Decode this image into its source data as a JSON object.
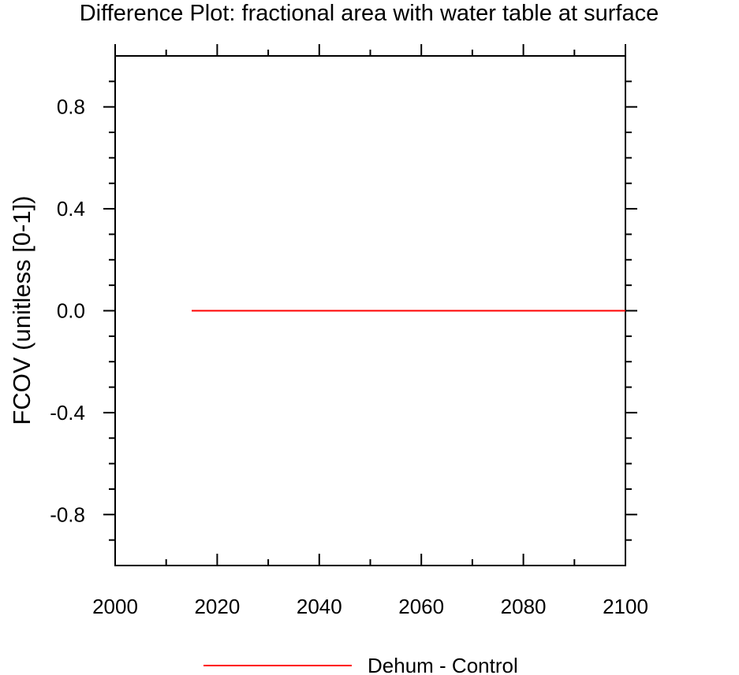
{
  "colors": {
    "background": "#ffffff",
    "axis": "#000000",
    "series_line": "#ff0000"
  },
  "chart_data": {
    "type": "line",
    "title": "Difference Plot: fractional area with water table at surface",
    "xlabel": "",
    "ylabel": "FCOV  (unitless [0-1])",
    "xlim": [
      2000,
      2100
    ],
    "ylim": [
      -1,
      1
    ],
    "x_ticks": [
      2000,
      2020,
      2040,
      2060,
      2080,
      2100
    ],
    "x_tick_labels": [
      "2000",
      "2020",
      "2040",
      "2060",
      "2080",
      "2100"
    ],
    "x_minor_ticks": [
      2010,
      2030,
      2050,
      2070,
      2090
    ],
    "y_ticks": [
      -0.8,
      -0.4,
      0.0,
      0.4,
      0.8
    ],
    "y_tick_labels": [
      "-0.8",
      "-0.4",
      "0.0",
      "0.4",
      "0.8"
    ],
    "y_minor_ticks": [
      -0.9,
      -0.7,
      -0.6,
      -0.5,
      -0.3,
      -0.2,
      -0.1,
      0.1,
      0.2,
      0.3,
      0.5,
      0.6,
      0.7,
      0.9
    ],
    "grid": false,
    "legend_position": "bottom-center",
    "series": [
      {
        "name": "Dehum - Control",
        "color": "#ff0000",
        "x": [
          2015,
          2100
        ],
        "y": [
          0.0,
          0.0
        ]
      }
    ]
  }
}
